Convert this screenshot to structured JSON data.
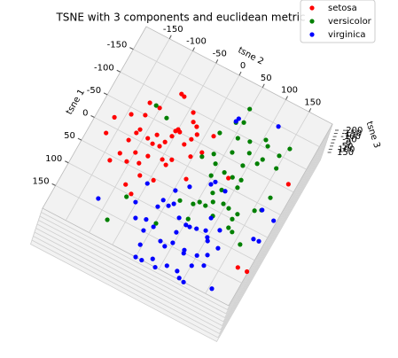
{
  "chart_data": {
    "type": "scatter3d",
    "title": "TSNE with 3 components and euclidean metric",
    "xlabel": "tsne 1",
    "ylabel": "tsne 2",
    "zlabel": "tsne 3",
    "xlim": [
      -200,
      200
    ],
    "ylim": [
      -200,
      200
    ],
    "xticks": [
      -150,
      -100,
      -50,
      0,
      50,
      100,
      150
    ],
    "yticks": [
      -150,
      -100,
      -50,
      0,
      50,
      100,
      150
    ],
    "zticks": [
      -200,
      -150,
      -100,
      -50,
      0,
      50,
      100,
      150
    ],
    "grid": true,
    "legend": "upper right",
    "series": [
      {
        "name": "setosa",
        "color": "#ff0000",
        "x": [
          -74,
          -74,
          -117,
          -115,
          -18,
          -38,
          -49,
          16,
          -20,
          -11,
          8,
          38,
          23,
          -12,
          -26,
          -7,
          -9,
          -21,
          -37,
          -49,
          -51,
          -54,
          -96,
          -80,
          -75,
          -62,
          -49,
          -34,
          -19,
          -36,
          59,
          46,
          38,
          18,
          11,
          17,
          3,
          58,
          54,
          86,
          97,
          23,
          -74,
          -16,
          -59,
          127,
          126
        ],
        "y": [
          -122,
          -101,
          -78,
          -71,
          -167,
          -142,
          -118,
          -166,
          -113,
          -116,
          -122,
          -124,
          -99,
          -92,
          -80,
          -79,
          -65,
          -60,
          -54,
          -53,
          -45,
          -50,
          -41,
          -32,
          -22,
          -14,
          -19,
          -26,
          -4,
          11,
          -134,
          -105,
          -83,
          -75,
          -48,
          -37,
          -32,
          -70,
          -43,
          -85,
          -67,
          10,
          15,
          79,
          184,
          179,
          198
        ]
      },
      {
        "name": "versicolor",
        "color": "#008000",
        "x": [
          -75,
          -63,
          -152,
          -124,
          -117,
          -85,
          -63,
          -92,
          -97,
          -114,
          -105,
          -78,
          -99,
          -66,
          -77,
          -50,
          -120,
          -75,
          -44,
          -29,
          -29,
          -5,
          -22,
          -21,
          -24,
          -8,
          10,
          23,
          50,
          51,
          38,
          65,
          59,
          89,
          62,
          32,
          35,
          50,
          37,
          68,
          72,
          86,
          9,
          16,
          -20,
          106,
          162,
          125
        ],
        "y": [
          -109,
          -80,
          49,
          52,
          39,
          22,
          61,
          57,
          80,
          105,
          114,
          118,
          142,
          113,
          90,
          91,
          153,
          149,
          32,
          44,
          15,
          48,
          67,
          85,
          102,
          103,
          79,
          67,
          54,
          67,
          76,
          20,
          45,
          51,
          89,
          95,
          108,
          124,
          128,
          126,
          136,
          161,
          164,
          153,
          167,
          -72,
          -82,
          2
        ]
      },
      {
        "name": "virginica",
        "color": "#0000ff",
        "x": [
          -119,
          -126,
          -148,
          134,
          65,
          107,
          95,
          79,
          84,
          76,
          52,
          33,
          10,
          2,
          9,
          95,
          127,
          134,
          133,
          122,
          101,
          101,
          98,
          93,
          67,
          80,
          103,
          109,
          148,
          175,
          151,
          156,
          143,
          145,
          133,
          112,
          143,
          200,
          188,
          187,
          151,
          200,
          200,
          187,
          165,
          154,
          197,
          200,
          186,
          65,
          64,
          8,
          16
        ],
        "y": [
          38,
          40,
          113,
          -117,
          -50,
          -52,
          -11,
          -8,
          6,
          13,
          3,
          23,
          56,
          61,
          86,
          35,
          -18,
          -37,
          1,
          44,
          53,
          61,
          74,
          91,
          88,
          114,
          100,
          104,
          -12,
          -4,
          26,
          38,
          48,
          74,
          117,
          128,
          100,
          0,
          30,
          60,
          76,
          13,
          42,
          82,
          101,
          121,
          92,
          103,
          156,
          178,
          189,
          165,
          194
        ]
      }
    ]
  }
}
